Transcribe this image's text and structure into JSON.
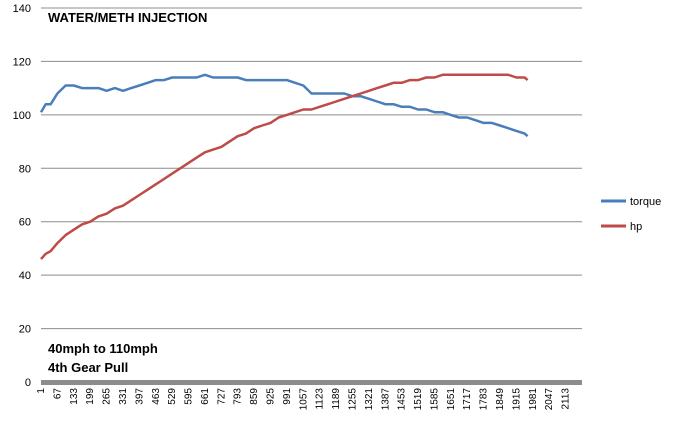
{
  "chart_data": {
    "type": "line",
    "title": "WATER/METH INJECTION",
    "annotation_lines": [
      "40mph to 110mph",
      "4th Gear Pull"
    ],
    "xlabel": "",
    "ylabel": "",
    "ylim": [
      0,
      140
    ],
    "yticks": [
      0,
      20,
      40,
      60,
      80,
      100,
      120,
      140
    ],
    "xlim": [
      1,
      2179
    ],
    "xticks": [
      1,
      67,
      133,
      199,
      265,
      331,
      397,
      463,
      529,
      595,
      661,
      727,
      793,
      859,
      925,
      991,
      1057,
      1123,
      1189,
      1255,
      1321,
      1387,
      1453,
      1519,
      1585,
      1651,
      1717,
      1783,
      1849,
      1915,
      1981,
      2047,
      2113
    ],
    "grid": true,
    "legend": "right",
    "x": [
      1,
      20,
      40,
      67,
      100,
      133,
      166,
      199,
      232,
      265,
      298,
      331,
      364,
      397,
      430,
      463,
      496,
      529,
      562,
      595,
      628,
      661,
      694,
      727,
      760,
      793,
      826,
      859,
      892,
      925,
      958,
      991,
      1024,
      1057,
      1090,
      1123,
      1156,
      1189,
      1222,
      1255,
      1288,
      1321,
      1354,
      1387,
      1420,
      1453,
      1486,
      1519,
      1552,
      1585,
      1618,
      1651,
      1684,
      1717,
      1750,
      1783,
      1816,
      1849,
      1882,
      1915,
      1948,
      1960
    ],
    "series": [
      {
        "name": "torque",
        "color": "#4a7ebb",
        "values": [
          101,
          104,
          104,
          108,
          111,
          111,
          110,
          110,
          110,
          109,
          110,
          109,
          110,
          111,
          112,
          113,
          113,
          114,
          114,
          114,
          114,
          115,
          114,
          114,
          114,
          114,
          113,
          113,
          113,
          113,
          113,
          113,
          112,
          111,
          108,
          108,
          108,
          108,
          108,
          107,
          107,
          106,
          105,
          104,
          104,
          103,
          103,
          102,
          102,
          101,
          101,
          100,
          99,
          99,
          98,
          97,
          97,
          96,
          95,
          94,
          93,
          92
        ]
      },
      {
        "name": "hp",
        "color": "#be4b48",
        "values": [
          46,
          48,
          49,
          52,
          55,
          57,
          59,
          60,
          62,
          63,
          65,
          66,
          68,
          70,
          72,
          74,
          76,
          78,
          80,
          82,
          84,
          86,
          87,
          88,
          90,
          92,
          93,
          95,
          96,
          97,
          99,
          100,
          101,
          102,
          102,
          103,
          104,
          105,
          106,
          107,
          108,
          109,
          110,
          111,
          112,
          112,
          113,
          113,
          114,
          114,
          115,
          115,
          115,
          115,
          115,
          115,
          115,
          115,
          115,
          114,
          114,
          113
        ]
      }
    ]
  }
}
